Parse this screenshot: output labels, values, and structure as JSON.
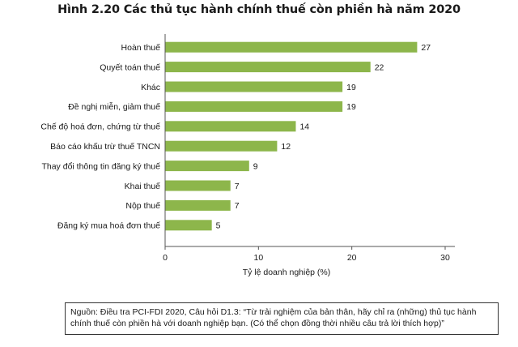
{
  "title": "Hình 2.20 Các thủ tục hành chính thuế còn phiền hà năm 2020",
  "source_note": "Nguồn: Điều tra PCI-FDI 2020, Câu hỏi D1.3: “Từ trải nghiệm của bản thân, hãy chỉ ra (những) thủ tục hành chính thuế còn phiền hà với doanh nghiệp bạn. (Có thể chọn đồng thời nhiều câu trả lời thích hợp)”",
  "colors": {
    "bar": "#8db64b",
    "axis": "#555555"
  },
  "chart_data": {
    "type": "bar",
    "orientation": "horizontal",
    "categories": [
      "Hoàn thuế",
      "Quyết toán thuế",
      "Khác",
      "Đề nghị miễn, giảm thuế",
      "Chế độ hoá đơn, chứng từ thuế",
      "Báo cáo khấu trừ thuế TNCN",
      "Thay đổi thông tin đăng ký thuế",
      "Khai thuế",
      "Nộp thuế",
      "Đăng ký mua hoá đơn thuế"
    ],
    "values": [
      27,
      22,
      19,
      19,
      14,
      12,
      9,
      7,
      7,
      5
    ],
    "value_labels": [
      "27",
      "22",
      "19",
      "19",
      "14",
      "12",
      "9",
      "7",
      "7",
      "5"
    ],
    "xlabel": "Tỷ lệ doanh nghiệp (%)",
    "xlim": [
      0,
      30
    ],
    "xticks": [
      0,
      10,
      20,
      30
    ],
    "xtick_labels": [
      "0",
      "10",
      "20",
      "30"
    ],
    "grid": false,
    "legend": "none"
  }
}
